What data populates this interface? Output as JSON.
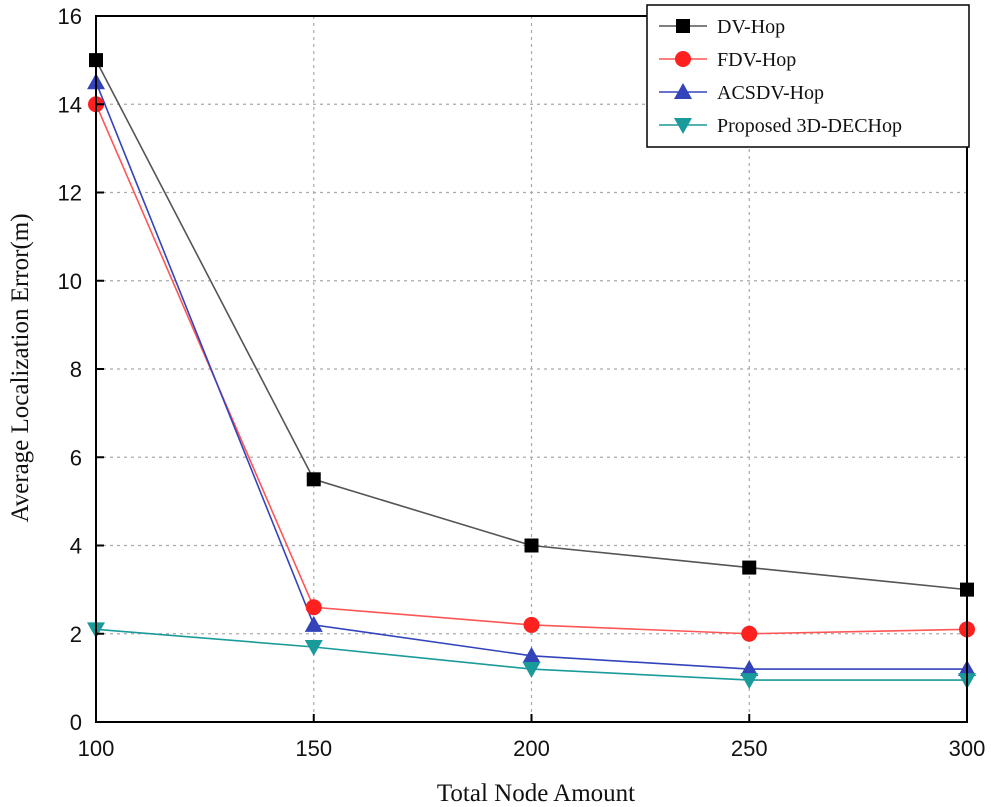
{
  "chart_data": {
    "type": "line",
    "xlabel": "Total Node Amount",
    "ylabel": "Average Localization Error(m)",
    "x": [
      100,
      150,
      200,
      250,
      300
    ],
    "xlim": [
      100,
      300
    ],
    "ylim": [
      0,
      16
    ],
    "xticks": [
      100,
      150,
      200,
      250,
      300
    ],
    "yticks": [
      0,
      2,
      4,
      6,
      8,
      10,
      12,
      14,
      16
    ],
    "grid": true,
    "legend_position": "top-right",
    "series": [
      {
        "name": "DV-Hop",
        "values": [
          15.0,
          5.5,
          4.0,
          3.5,
          3.0
        ],
        "color": "#000000",
        "line_color": "#555555",
        "marker": "square"
      },
      {
        "name": "FDV-Hop",
        "values": [
          14.0,
          2.6,
          2.2,
          2.0,
          2.1
        ],
        "color": "#ff2020",
        "line_color": "#ff5555",
        "marker": "circle"
      },
      {
        "name": "ACSDV-Hop",
        "values": [
          14.5,
          2.2,
          1.5,
          1.2,
          1.2
        ],
        "color": "#3344bb",
        "line_color": "#3344bb",
        "marker": "triangle-up"
      },
      {
        "name": "Proposed 3D-DECHop",
        "values": [
          2.1,
          1.7,
          1.2,
          0.95,
          0.95
        ],
        "color": "#1a9a9a",
        "line_color": "#1a9a9a",
        "marker": "triangle-down"
      }
    ]
  }
}
